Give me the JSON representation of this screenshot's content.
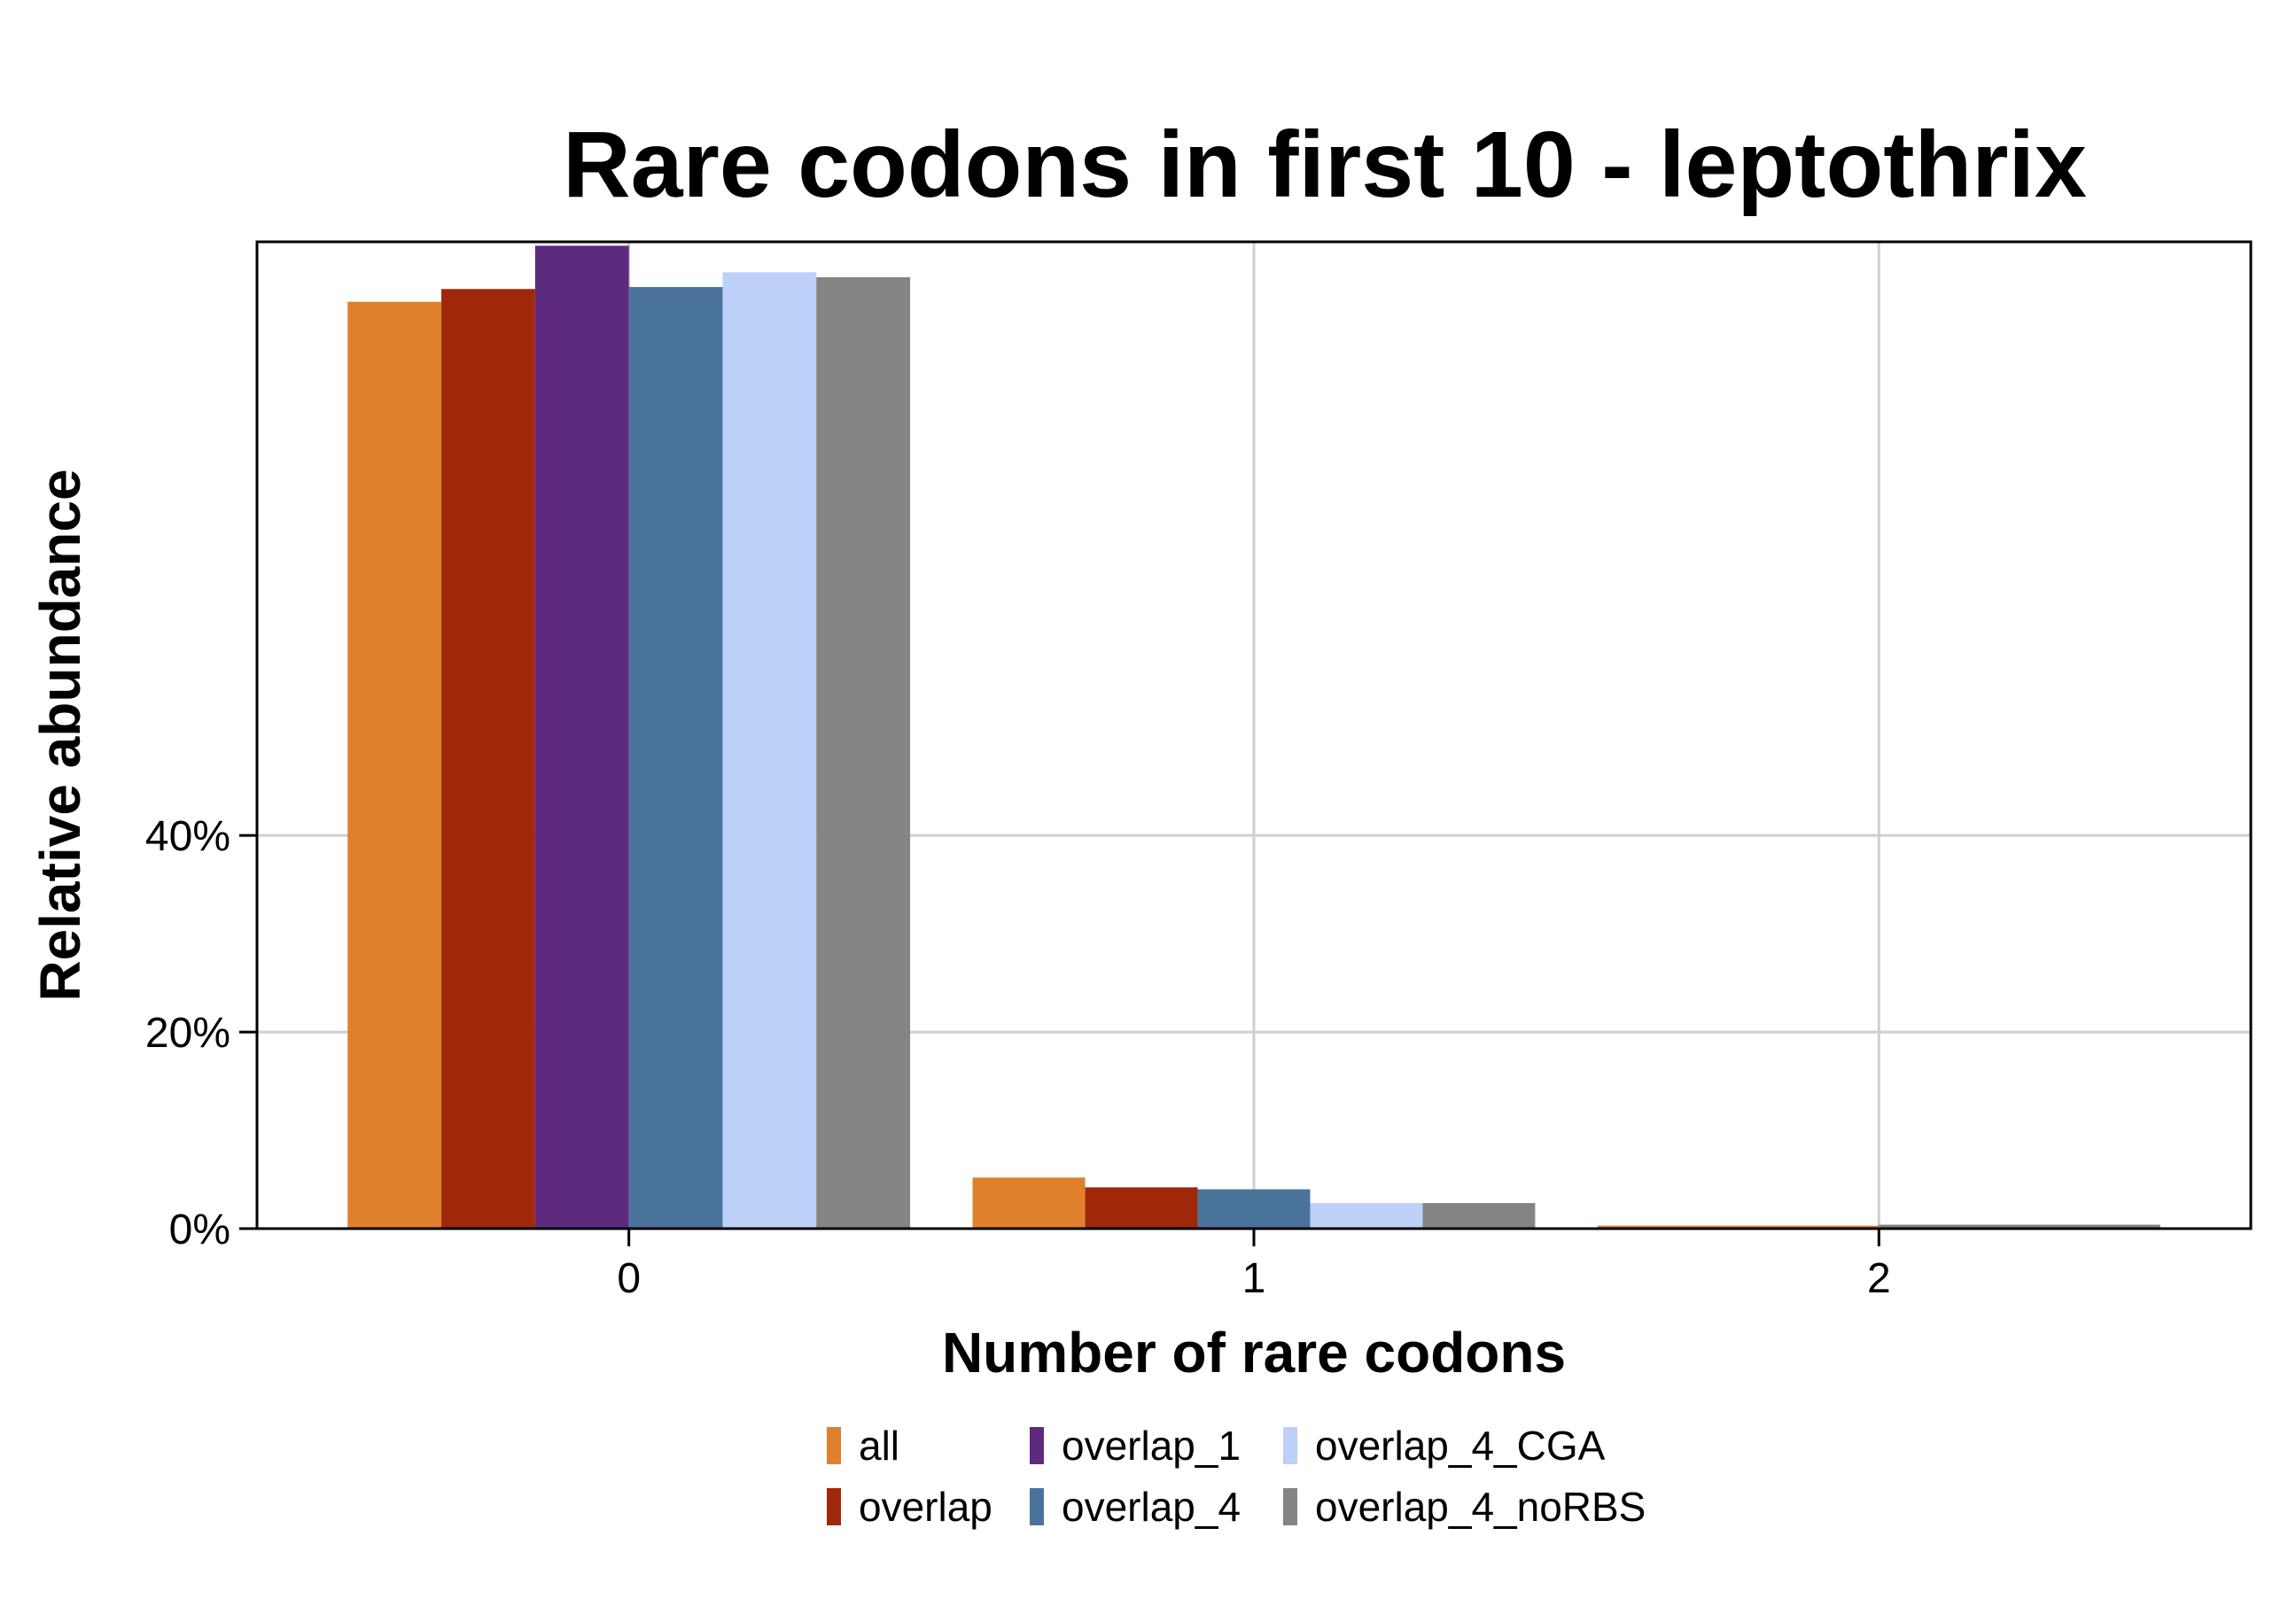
{
  "chart_data": {
    "type": "bar",
    "title": "Rare codons in first 10 - leptothrix",
    "xlabel": "Number of rare codons",
    "ylabel": "Relative abundance",
    "categories": [
      "0",
      "1",
      "2"
    ],
    "y_ticks": [
      "0%",
      "20%",
      "40%"
    ],
    "ylim": [
      0,
      100
    ],
    "grid": true,
    "legend_position": "bottom",
    "series": [
      {
        "name": "all",
        "color": "#E07F2C",
        "values": [
          94.3,
          5.2,
          0.3
        ]
      },
      {
        "name": "overlap",
        "color": "#A0280A",
        "values": [
          95.6,
          4.2,
          0.0
        ]
      },
      {
        "name": "overlap_1",
        "color": "#5E2A7E",
        "values": [
          100.0,
          0.0,
          0.0
        ]
      },
      {
        "name": "overlap_4",
        "color": "#4A739C",
        "values": [
          95.8,
          4.0,
          0.0
        ]
      },
      {
        "name": "overlap_4_CGA",
        "color": "#BDD0F8",
        "values": [
          97.3,
          2.6,
          0.0
        ]
      },
      {
        "name": "overlap_4_noRBS",
        "color": "#848482",
        "values": [
          96.8,
          2.6,
          0.4
        ]
      }
    ]
  }
}
